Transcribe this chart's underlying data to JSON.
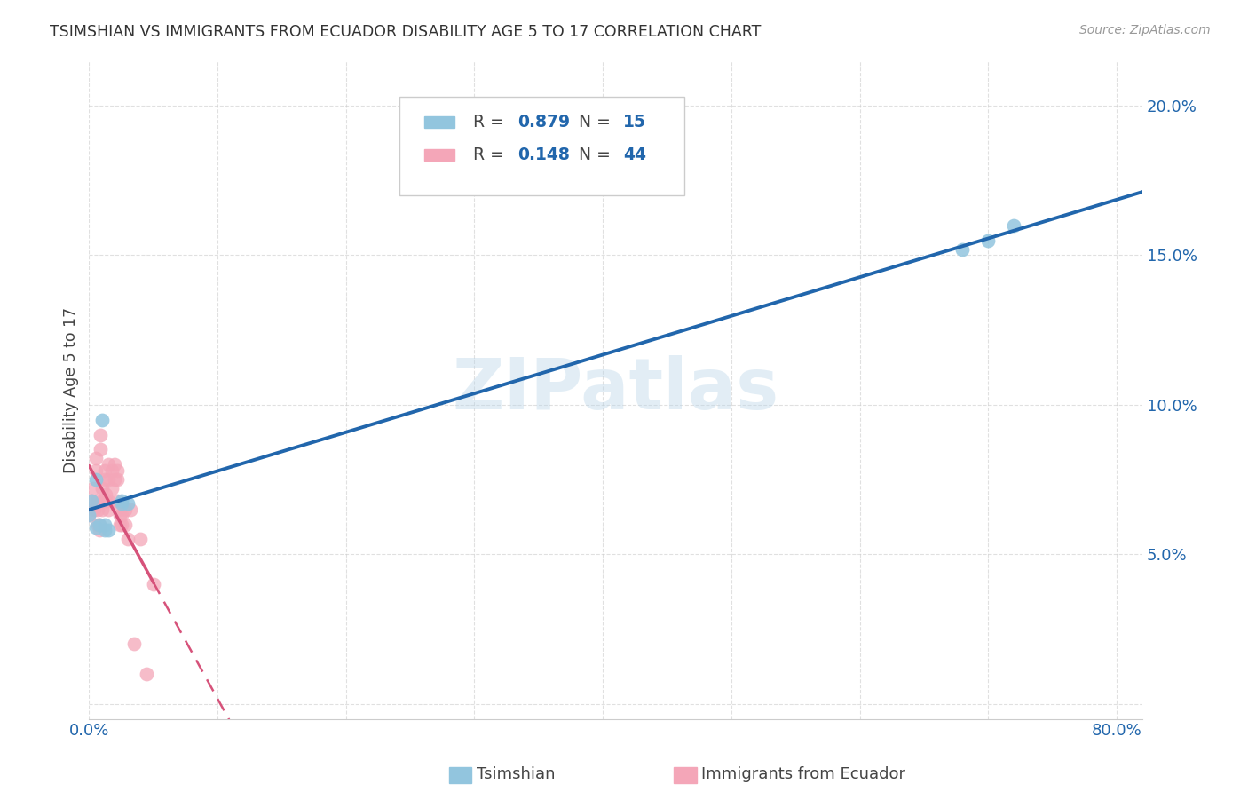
{
  "title": "TSIMSHIAN VS IMMIGRANTS FROM ECUADOR DISABILITY AGE 5 TO 17 CORRELATION CHART",
  "source": "Source: ZipAtlas.com",
  "ylabel": "Disability Age 5 to 17",
  "watermark": "ZIPatlas",
  "xlim": [
    0.0,
    0.82
  ],
  "ylim": [
    -0.005,
    0.215
  ],
  "xticks": [
    0.0,
    0.1,
    0.2,
    0.3,
    0.4,
    0.5,
    0.6,
    0.7,
    0.8
  ],
  "yticks": [
    0.0,
    0.05,
    0.1,
    0.15,
    0.2
  ],
  "tsimshian_points": [
    [
      0.0,
      0.063
    ],
    [
      0.002,
      0.068
    ],
    [
      0.005,
      0.075
    ],
    [
      0.005,
      0.059
    ],
    [
      0.008,
      0.06
    ],
    [
      0.01,
      0.095
    ],
    [
      0.012,
      0.06
    ],
    [
      0.012,
      0.058
    ],
    [
      0.015,
      0.058
    ],
    [
      0.025,
      0.067
    ],
    [
      0.025,
      0.068
    ],
    [
      0.03,
      0.067
    ],
    [
      0.68,
      0.152
    ],
    [
      0.7,
      0.155
    ],
    [
      0.72,
      0.16
    ]
  ],
  "ecuador_points": [
    [
      0.0,
      0.063
    ],
    [
      0.002,
      0.068
    ],
    [
      0.003,
      0.072
    ],
    [
      0.004,
      0.065
    ],
    [
      0.005,
      0.078
    ],
    [
      0.005,
      0.082
    ],
    [
      0.006,
      0.068
    ],
    [
      0.007,
      0.065
    ],
    [
      0.007,
      0.06
    ],
    [
      0.008,
      0.06
    ],
    [
      0.008,
      0.058
    ],
    [
      0.009,
      0.085
    ],
    [
      0.009,
      0.09
    ],
    [
      0.01,
      0.072
    ],
    [
      0.01,
      0.068
    ],
    [
      0.01,
      0.065
    ],
    [
      0.012,
      0.078
    ],
    [
      0.012,
      0.075
    ],
    [
      0.013,
      0.07
    ],
    [
      0.013,
      0.068
    ],
    [
      0.015,
      0.08
    ],
    [
      0.015,
      0.075
    ],
    [
      0.015,
      0.068
    ],
    [
      0.015,
      0.065
    ],
    [
      0.018,
      0.078
    ],
    [
      0.018,
      0.072
    ],
    [
      0.02,
      0.08
    ],
    [
      0.02,
      0.075
    ],
    [
      0.022,
      0.078
    ],
    [
      0.022,
      0.075
    ],
    [
      0.022,
      0.068
    ],
    [
      0.023,
      0.065
    ],
    [
      0.024,
      0.063
    ],
    [
      0.024,
      0.06
    ],
    [
      0.025,
      0.063
    ],
    [
      0.025,
      0.06
    ],
    [
      0.028,
      0.065
    ],
    [
      0.028,
      0.06
    ],
    [
      0.03,
      0.055
    ],
    [
      0.032,
      0.065
    ],
    [
      0.035,
      0.02
    ],
    [
      0.04,
      0.055
    ],
    [
      0.045,
      0.01
    ],
    [
      0.05,
      0.04
    ]
  ],
  "tsimshian_color": "#92c5de",
  "ecuador_color": "#f4a6b8",
  "trend_blue_color": "#2166ac",
  "trend_pink_solid_color": "#d6527a",
  "trend_pink_dash_color": "#d6527a",
  "background_color": "#ffffff",
  "grid_color": "#cccccc",
  "title_color": "#333333",
  "tick_label_color": "#2166ac",
  "legend_blue_color": "#92c5de",
  "legend_pink_color": "#f4a6b8",
  "R_blue": "0.879",
  "N_blue": "15",
  "R_pink": "0.148",
  "N_pink": "44"
}
